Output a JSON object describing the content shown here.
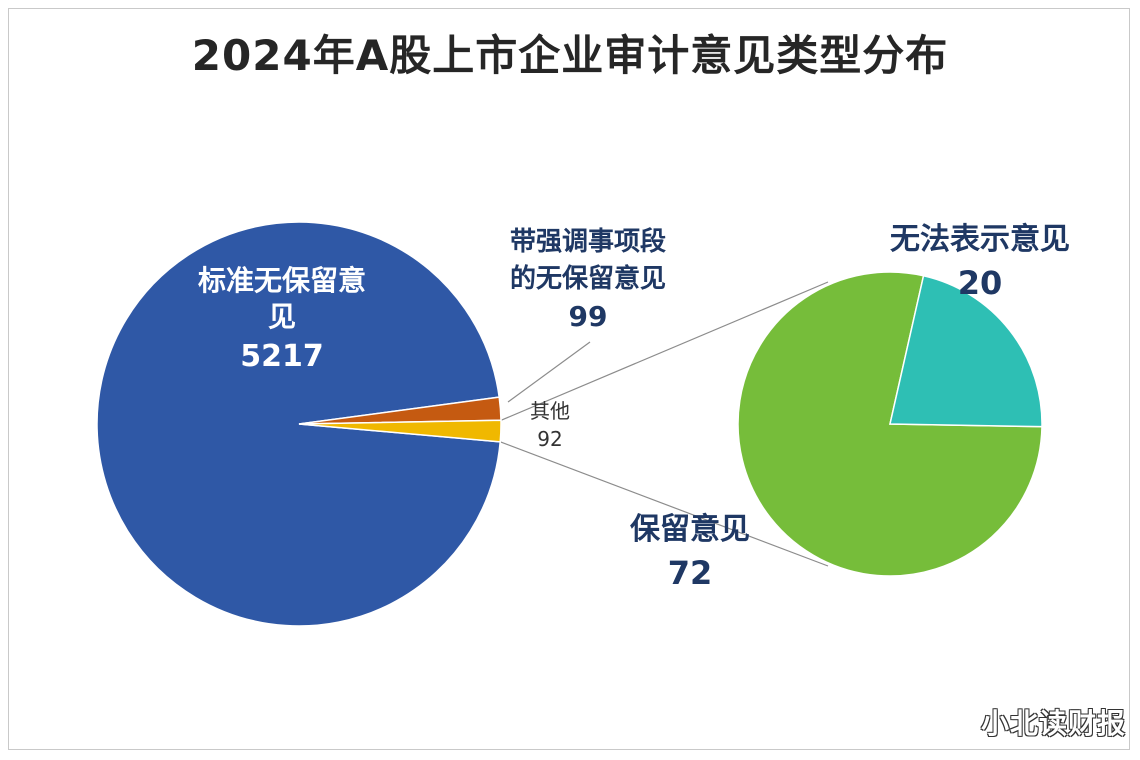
{
  "title": "2024年A股上市企业审计意见类型分布",
  "watermark": "小北读财报",
  "colors": {
    "standard": "#2f58a6",
    "emphasis": "#c55a11",
    "other": "#f0b800",
    "qualified": "#76bd3a",
    "disclaimer": "#2ebfb4",
    "label_dark": "#1f3864",
    "connector": "#8c8c8c"
  },
  "chart_data": [
    {
      "type": "pie",
      "title": "",
      "slices": [
        {
          "label_lines": [
            "标准无保留意",
            "见"
          ],
          "value": 5217,
          "value_text": "5217"
        },
        {
          "label_lines": [
            "带强调事项段",
            "的无保留意见"
          ],
          "value": 99,
          "value_text": "99"
        },
        {
          "label_lines": [
            "其他"
          ],
          "value": 92,
          "value_text": "92"
        }
      ]
    },
    {
      "type": "pie",
      "title": "",
      "breakdown_of": "其他",
      "slices": [
        {
          "label_lines": [
            "保留意见"
          ],
          "value": 72,
          "value_text": "72"
        },
        {
          "label_lines": [
            "无法表示意见"
          ],
          "value": 20,
          "value_text": "20"
        }
      ]
    }
  ]
}
